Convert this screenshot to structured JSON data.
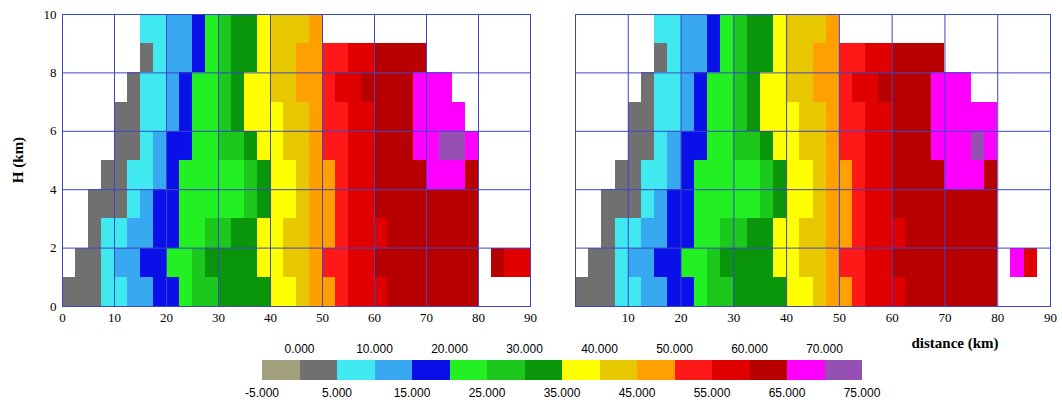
{
  "chart_data": [
    {
      "type": "heatmap",
      "ylabel": "H (km)",
      "grid": true,
      "xlim": [
        0,
        90
      ],
      "ylim": [
        0,
        10
      ],
      "xticks": [
        0,
        10,
        20,
        30,
        40,
        50,
        60,
        70,
        80,
        90
      ],
      "yticks": [
        0,
        2,
        4,
        6,
        8,
        10
      ],
      "x": [
        1.25,
        3.75,
        6.25,
        8.75,
        11.25,
        13.75,
        16.25,
        18.75,
        21.25,
        23.75,
        26.25,
        28.75,
        31.25,
        33.75,
        36.25,
        38.75,
        41.25,
        43.75,
        46.25,
        48.75,
        51.25,
        53.75,
        56.25,
        58.75,
        61.25,
        63.75,
        66.25,
        68.75,
        71.25,
        73.75,
        76.25,
        78.75,
        81.25,
        83.75,
        86.25,
        88.75
      ],
      "y": [
        0.5,
        1.5,
        2.5,
        3.5,
        4.5,
        5.5,
        6.5,
        7.5,
        8.5,
        9.5
      ],
      "z": [
        [
          3,
          3,
          4,
          6,
          9,
          12,
          14,
          18,
          19,
          23,
          27,
          29,
          32,
          33,
          34,
          34,
          37,
          39,
          43,
          47,
          49,
          53,
          56,
          57,
          59,
          61,
          62,
          63,
          63,
          64,
          64,
          64,
          null,
          null,
          null,
          null
        ],
        [
          null,
          3,
          4,
          7,
          10,
          12,
          16,
          18,
          21,
          24,
          27,
          30,
          31,
          33,
          34,
          36,
          38,
          41,
          44,
          47,
          50,
          53,
          56,
          58,
          60,
          61,
          62,
          63,
          63,
          64,
          64,
          63,
          null,
          60,
          57,
          56
        ],
        [
          null,
          null,
          3,
          6,
          9,
          12,
          14,
          17,
          19,
          22,
          24,
          27,
          29,
          31,
          33,
          35,
          37,
          40,
          43,
          46,
          48,
          52,
          55,
          57,
          59,
          61,
          62,
          62,
          63,
          63,
          63,
          62,
          null,
          null,
          null,
          null
        ],
        [
          null,
          null,
          2,
          3,
          4,
          8,
          11,
          15,
          18,
          21,
          22,
          23,
          24,
          24,
          28,
          33,
          36,
          39,
          42,
          46,
          49,
          52,
          56,
          58,
          60,
          61,
          62,
          63,
          63,
          64,
          64,
          63,
          null,
          null,
          null,
          null
        ],
        [
          null,
          null,
          null,
          2,
          3,
          6,
          9,
          13,
          17,
          21,
          22,
          23,
          23,
          24,
          26,
          31,
          36,
          38,
          41,
          45,
          49,
          53,
          56,
          58,
          60,
          62,
          63,
          64,
          66,
          67,
          68,
          64,
          null,
          null,
          null,
          null
        ],
        [
          null,
          null,
          null,
          null,
          2,
          4,
          7,
          11,
          16,
          19,
          21,
          23,
          25,
          27,
          32,
          36,
          38,
          40,
          43,
          46,
          50,
          53,
          56,
          58,
          61,
          63,
          64,
          66,
          67,
          71,
          72,
          66,
          null,
          null,
          null,
          null
        ],
        [
          null,
          null,
          null,
          null,
          1,
          3,
          6,
          9,
          13,
          17,
          21,
          24,
          27,
          31,
          35,
          37,
          39,
          41,
          44,
          47,
          51,
          54,
          57,
          59,
          62,
          63,
          64,
          66,
          68,
          69,
          67,
          null,
          null,
          null,
          null,
          null
        ],
        [
          null,
          null,
          null,
          null,
          null,
          2,
          5,
          8,
          11,
          15,
          20,
          23,
          27,
          31,
          35,
          37,
          40,
          42,
          45,
          48,
          52,
          55,
          57,
          60,
          62,
          63,
          64,
          66,
          67,
          66,
          null,
          null,
          null,
          null,
          null,
          null
        ],
        [
          null,
          null,
          null,
          null,
          null,
          null,
          4,
          7,
          11,
          14,
          19,
          23,
          28,
          31,
          34,
          37,
          40,
          42,
          45,
          48,
          51,
          54,
          57,
          59,
          61,
          62,
          63,
          64,
          null,
          null,
          null,
          null,
          null,
          null,
          null,
          null
        ],
        [
          null,
          null,
          null,
          null,
          null,
          null,
          5,
          7,
          10,
          13,
          18,
          22,
          27,
          30,
          33,
          37,
          40,
          42,
          44,
          47,
          null,
          null,
          null,
          null,
          null,
          null,
          null,
          null,
          null,
          null,
          null,
          null,
          null,
          null,
          null,
          null
        ]
      ]
    },
    {
      "type": "heatmap",
      "xlabel": "distance (km)",
      "grid": true,
      "tick_labels": "x",
      "xlim": [
        0,
        90
      ],
      "ylim": [
        0,
        10
      ],
      "xticks": [
        10,
        20,
        30,
        40,
        50,
        60,
        70,
        80,
        90
      ],
      "yticks": [
        0,
        2,
        4,
        6,
        8,
        10
      ],
      "x": [
        1.25,
        3.75,
        6.25,
        8.75,
        11.25,
        13.75,
        16.25,
        18.75,
        21.25,
        23.75,
        26.25,
        28.75,
        31.25,
        33.75,
        36.25,
        38.75,
        41.25,
        43.75,
        46.25,
        48.75,
        51.25,
        53.75,
        56.25,
        58.75,
        61.25,
        63.75,
        66.25,
        68.75,
        71.25,
        73.75,
        76.25,
        78.75,
        81.25,
        83.75,
        86.25,
        88.75
      ],
      "y": [
        0.5,
        1.5,
        2.5,
        3.5,
        4.5,
        5.5,
        6.5,
        7.5,
        8.5,
        9.5
      ],
      "z": [
        [
          3,
          3,
          4,
          6,
          9,
          12,
          14,
          18,
          19,
          23,
          27,
          29,
          32,
          33,
          34,
          34,
          37,
          39,
          43,
          47,
          49,
          53,
          56,
          57,
          59,
          61,
          62,
          63,
          63,
          64,
          64,
          64,
          null,
          null,
          null,
          null
        ],
        [
          null,
          3,
          4,
          7,
          10,
          12,
          16,
          18,
          21,
          24,
          27,
          30,
          31,
          33,
          34,
          36,
          38,
          41,
          44,
          47,
          50,
          53,
          56,
          58,
          60,
          61,
          62,
          63,
          63,
          64,
          64,
          63,
          null,
          67,
          58,
          null
        ],
        [
          null,
          null,
          3,
          6,
          9,
          12,
          14,
          17,
          19,
          22,
          24,
          27,
          29,
          31,
          33,
          35,
          37,
          40,
          43,
          46,
          48,
          52,
          55,
          57,
          59,
          61,
          62,
          62,
          63,
          63,
          63,
          62,
          null,
          null,
          null,
          null
        ],
        [
          null,
          null,
          2,
          3,
          4,
          8,
          11,
          15,
          18,
          21,
          22,
          23,
          24,
          24,
          28,
          33,
          36,
          39,
          42,
          46,
          49,
          52,
          56,
          58,
          60,
          61,
          62,
          63,
          63,
          64,
          64,
          63,
          null,
          null,
          null,
          null
        ],
        [
          null,
          null,
          null,
          2,
          3,
          6,
          9,
          13,
          17,
          21,
          22,
          23,
          23,
          24,
          26,
          31,
          36,
          38,
          41,
          45,
          49,
          53,
          56,
          58,
          60,
          62,
          63,
          64,
          66,
          67,
          68,
          64,
          null,
          null,
          null,
          null
        ],
        [
          null,
          null,
          null,
          null,
          2,
          4,
          7,
          11,
          16,
          19,
          21,
          23,
          25,
          27,
          32,
          36,
          38,
          40,
          43,
          46,
          50,
          53,
          56,
          58,
          61,
          63,
          64,
          66,
          67,
          68,
          70,
          66,
          null,
          null,
          null,
          null
        ],
        [
          null,
          null,
          null,
          null,
          1,
          3,
          6,
          9,
          13,
          17,
          21,
          24,
          27,
          31,
          35,
          37,
          39,
          41,
          44,
          47,
          51,
          54,
          57,
          59,
          62,
          63,
          64,
          66,
          68,
          69,
          67,
          65,
          null,
          null,
          null,
          null
        ],
        [
          null,
          null,
          null,
          null,
          null,
          2,
          5,
          8,
          11,
          15,
          20,
          23,
          27,
          31,
          35,
          37,
          40,
          42,
          45,
          48,
          52,
          55,
          57,
          60,
          62,
          63,
          64,
          66,
          67,
          68,
          null,
          null,
          null,
          null,
          null,
          null
        ],
        [
          null,
          null,
          null,
          null,
          null,
          null,
          4,
          7,
          11,
          14,
          19,
          23,
          28,
          31,
          34,
          37,
          40,
          42,
          45,
          48,
          51,
          54,
          57,
          59,
          61,
          62,
          63,
          64,
          null,
          null,
          null,
          null,
          null,
          null,
          null,
          null
        ],
        [
          null,
          null,
          null,
          null,
          null,
          null,
          5,
          7,
          10,
          13,
          18,
          22,
          27,
          30,
          33,
          37,
          40,
          42,
          44,
          47,
          null,
          null,
          null,
          null,
          null,
          null,
          null,
          null,
          null,
          null,
          null,
          null,
          null,
          null,
          null,
          null
        ]
      ],
      "colorbar": {
        "bounds": [
          -5,
          0,
          5,
          10,
          15,
          20,
          25,
          30,
          35,
          40,
          45,
          50,
          55,
          60,
          65,
          70,
          75
        ],
        "colors": [
          "#a0a07c",
          "#707070",
          "#40e8f0",
          "#38a8f0",
          "#0a10e8",
          "#22f022",
          "#1cc81c",
          "#0a960a",
          "#ffff00",
          "#e8c800",
          "#ffa000",
          "#ff1818",
          "#e00000",
          "#b80000",
          "#ff00ff",
          "#9650b4"
        ],
        "ticks": [
          {
            "value": -5,
            "label": "-5.000"
          },
          {
            "value": 0,
            "label": "0.000"
          },
          {
            "value": 5,
            "label": "5.000"
          },
          {
            "value": 10,
            "label": "10.000"
          },
          {
            "value": 15,
            "label": "15.000"
          },
          {
            "value": 20,
            "label": "20.000"
          },
          {
            "value": 25,
            "label": "25.000"
          },
          {
            "value": 30,
            "label": "30.000"
          },
          {
            "value": 35,
            "label": "35.000"
          },
          {
            "value": 40,
            "label": "40.000"
          },
          {
            "value": 45,
            "label": "45.000"
          },
          {
            "value": 50,
            "label": "50.000"
          },
          {
            "value": 55,
            "label": "55.000"
          },
          {
            "value": 60,
            "label": "60.000"
          },
          {
            "value": 65,
            "label": "65.000"
          },
          {
            "value": 70,
            "label": "70.000"
          },
          {
            "value": 75,
            "label": "75.000"
          }
        ]
      }
    }
  ]
}
